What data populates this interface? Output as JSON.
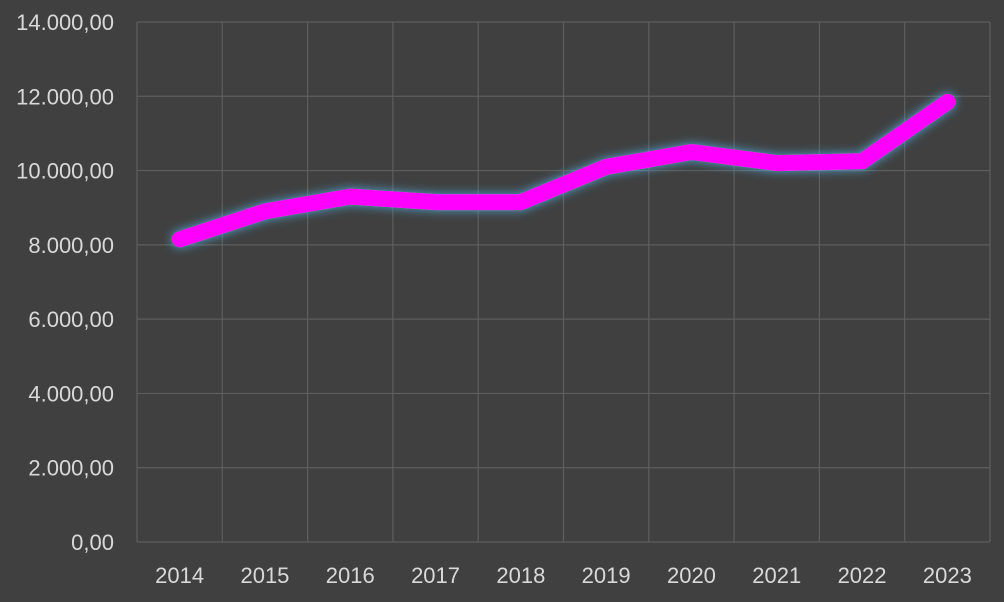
{
  "chart_data": {
    "type": "line",
    "title": "",
    "xlabel": "",
    "ylabel": "",
    "categories": [
      "2014",
      "2015",
      "2016",
      "2017",
      "2018",
      "2019",
      "2020",
      "2021",
      "2022",
      "2023"
    ],
    "series": [
      {
        "values": [
          8150,
          8900,
          9300,
          9150,
          9150,
          10100,
          10500,
          10200,
          10250,
          11850
        ]
      }
    ],
    "ylim": [
      0,
      14000
    ],
    "y_ticks": [
      0,
      2000,
      4000,
      6000,
      8000,
      10000,
      12000,
      14000
    ],
    "y_tick_labels": [
      "0,00",
      "2.000,00",
      "4.000,00",
      "6.000,00",
      "8.000,00",
      "10.000,00",
      "12.000,00",
      "14.000,00"
    ],
    "grid": true,
    "legend": "none",
    "colors": {
      "background": "#404040",
      "line": "#ff00ff",
      "glow": "#4fb3e8",
      "grid": "#5e5e5e",
      "text": "#d9d9d9"
    }
  }
}
